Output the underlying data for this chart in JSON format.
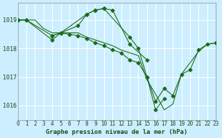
{
  "bg_color": "#cceeff",
  "grid_color": "#ffffff",
  "line_color": "#1a6b1a",
  "marker_color": "#1a6b1a",
  "title": "Graphe pression niveau de la mer (hPa)",
  "xlabel_color": "#1a4a1a",
  "ylabel_ticks": [
    1016,
    1017,
    1018,
    1019
  ],
  "xlim": [
    0,
    23
  ],
  "ylim": [
    1015.5,
    1019.6
  ],
  "series": [
    {
      "x": [
        0,
        1,
        2,
        3,
        4,
        5,
        6,
        7,
        8,
        9,
        10,
        11,
        12,
        13,
        14,
        15,
        16,
        17,
        18,
        19,
        20,
        21,
        22,
        23
      ],
      "y": [
        1019.0,
        1019.0,
        1019.0,
        1018.7,
        1018.55,
        1018.55,
        1018.55,
        1018.55,
        1018.4,
        1018.3,
        1018.2,
        1018.1,
        1017.95,
        1017.85,
        1017.75,
        1016.9,
        1016.4,
        1015.85,
        1016.05,
        1017.1,
        1017.5,
        1017.9,
        1018.15,
        1018.2
      ],
      "has_markers": false
    },
    {
      "x": [
        0,
        1,
        2,
        3,
        4,
        5,
        6,
        7,
        8,
        9,
        10,
        11,
        12,
        13,
        14,
        15,
        16,
        17,
        18,
        19,
        20,
        21,
        22,
        23
      ],
      "y": [
        1019.0,
        1019.0,
        null,
        null,
        1018.3,
        1018.55,
        null,
        null,
        1019.2,
        1019.35,
        1019.4,
        1019.35,
        null,
        1018.15,
        null,
        1017.6,
        null,
        null,
        null,
        null,
        null,
        null,
        null,
        null
      ],
      "has_markers": true
    },
    {
      "x": [
        0,
        1,
        2,
        3,
        4,
        5,
        6,
        7,
        8,
        9,
        10,
        11,
        12,
        13,
        14,
        15,
        16,
        17,
        18,
        19,
        20,
        21,
        22,
        23
      ],
      "y": [
        1019.0,
        1019.0,
        null,
        null,
        1018.45,
        1018.55,
        null,
        1018.8,
        1019.2,
        1019.35,
        1019.4,
        null,
        null,
        1018.4,
        1018.0,
        1017.0,
        1015.85,
        1016.25,
        null,
        null,
        null,
        null,
        null,
        null
      ],
      "has_markers": true
    },
    {
      "x": [
        4,
        5,
        6,
        7,
        8,
        9,
        10,
        11,
        12,
        13,
        14,
        15,
        16,
        17,
        18,
        19,
        20,
        21,
        22,
        23
      ],
      "y": [
        1018.45,
        1018.55,
        1018.5,
        1018.45,
        1018.35,
        1018.2,
        1018.1,
        1017.95,
        1017.85,
        1017.6,
        1017.5,
        1017.0,
        1016.15,
        1016.6,
        1016.35,
        1017.1,
        1017.25,
        1017.95,
        1018.15,
        1018.2
      ],
      "has_markers": true
    }
  ],
  "xtick_labels": [
    "0",
    "1",
    "2",
    "3",
    "4",
    "5",
    "6",
    "7",
    "8",
    "9",
    "10",
    "11",
    "12",
    "13",
    "14",
    "15",
    "16",
    "17",
    "18",
    "19",
    "20",
    "21",
    "22",
    "23"
  ]
}
